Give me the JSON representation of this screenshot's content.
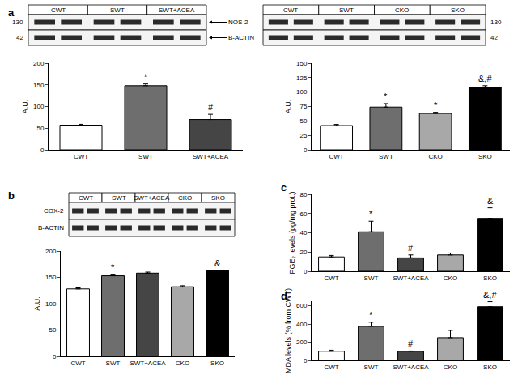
{
  "chart_data": [
    {
      "type": "bar",
      "title": "a",
      "blot": {
        "lanes": [
          "CWT",
          "SWT",
          "SWT+ACEA"
        ],
        "bands": [
          {
            "label": "NOS-2",
            "mw": 130
          },
          {
            "label": "B-ACTIN",
            "mw": 42
          }
        ]
      },
      "categories": [
        "CWT",
        "SWT",
        "SWT+ACEA"
      ],
      "values": [
        57,
        148,
        70
      ],
      "errors": [
        2,
        4,
        12
      ],
      "annotations": [
        null,
        "*",
        "#"
      ],
      "colors": [
        "#ffffff",
        "#6e6e6e",
        "#454545"
      ],
      "ylabel": "A.U.",
      "ylim": [
        0,
        200
      ],
      "yticks": [
        0,
        50,
        100,
        150,
        200
      ]
    },
    {
      "type": "bar",
      "blot": {
        "lanes": [
          "CWT",
          "SWT",
          "CKO",
          "SKO"
        ],
        "bands": [
          {
            "mw": 130
          },
          {
            "mw": 42
          }
        ]
      },
      "categories": [
        "CWT",
        "SWT",
        "CKO",
        "SKO"
      ],
      "values": [
        42,
        74,
        63,
        108
      ],
      "errors": [
        2,
        6,
        2,
        3
      ],
      "annotations": [
        null,
        "*",
        "*",
        "&,#"
      ],
      "colors": [
        "#ffffff",
        "#6e6e6e",
        "#a8a8a8",
        "#000000"
      ],
      "ylabel": "A.U.",
      "ylim": [
        0,
        150
      ],
      "yticks": [
        0,
        25,
        50,
        75,
        100,
        125,
        150
      ]
    },
    {
      "type": "bar",
      "title": "b",
      "blot": {
        "lanes": [
          "CWT",
          "SWT",
          "SWT+ACEA",
          "CKO",
          "SKO"
        ],
        "bands": [
          {
            "label": "COX-2"
          },
          {
            "label": "B-ACTIN"
          }
        ]
      },
      "categories": [
        "CWT",
        "SWT",
        "SWT+ACEA",
        "CKO",
        "SKO"
      ],
      "values": [
        128,
        153,
        158,
        132,
        163
      ],
      "errors": [
        2,
        3,
        2,
        2,
        0
      ],
      "annotations": [
        null,
        "*",
        null,
        null,
        "&"
      ],
      "colors": [
        "#ffffff",
        "#6e6e6e",
        "#454545",
        "#a8a8a8",
        "#000000"
      ],
      "ylabel": "A.U.",
      "ylim": [
        0,
        200
      ],
      "yticks": [
        0,
        50,
        100,
        150,
        200
      ]
    },
    {
      "type": "bar",
      "title": "c",
      "categories": [
        "CWT",
        "SWT",
        "SWT+ACEA",
        "CKO",
        "SKO"
      ],
      "values": [
        15,
        41,
        14,
        17,
        55
      ],
      "errors": [
        1.5,
        11,
        3,
        2,
        11
      ],
      "annotations": [
        null,
        "*",
        "#",
        null,
        "&"
      ],
      "colors": [
        "#ffffff",
        "#6e6e6e",
        "#454545",
        "#a8a8a8",
        "#000000"
      ],
      "ylabel": "PGE₂ levels (pg/mg prot.)",
      "ylim": [
        0,
        80
      ],
      "yticks": [
        0,
        20,
        40,
        60,
        80
      ]
    },
    {
      "type": "bar",
      "title": "d",
      "categories": [
        "CWT",
        "SWT",
        "SWT+ACEA",
        "CKO",
        "SKO"
      ],
      "values": [
        100,
        375,
        100,
        250,
        590
      ],
      "errors": [
        12,
        45,
        3,
        80,
        55
      ],
      "annotations": [
        null,
        "*",
        "#",
        null,
        "&,#"
      ],
      "colors": [
        "#ffffff",
        "#6e6e6e",
        "#454545",
        "#a8a8a8",
        "#000000"
      ],
      "ylabel": "MDA levels (% from CWT)",
      "ylim": [
        0,
        650
      ],
      "yticks": [
        0,
        200,
        400,
        600
      ]
    }
  ]
}
